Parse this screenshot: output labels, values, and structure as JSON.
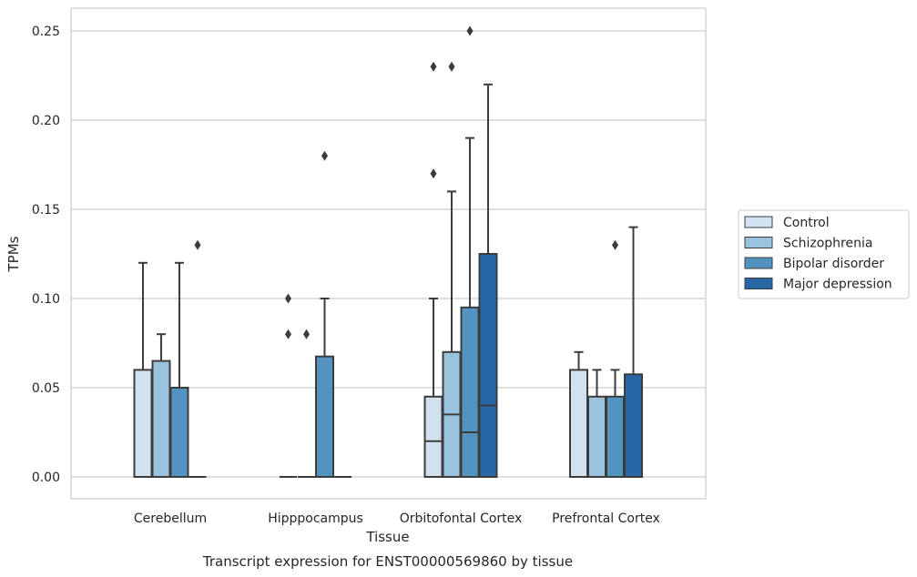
{
  "chart_data": {
    "type": "boxplot",
    "caption": "Transcript expression for ENST00000569860 by tissue",
    "xlabel": "Tissue",
    "ylabel": "TPMs",
    "ylim": [
      -0.012,
      0.263
    ],
    "yticks": [
      0.0,
      0.05,
      0.1,
      0.15,
      0.2,
      0.25
    ],
    "ytick_labels": [
      "0.00",
      "0.05",
      "0.10",
      "0.15",
      "0.20",
      "0.25"
    ],
    "grid": "horizontal",
    "legend_placement": "right, outside plot",
    "categories": [
      "Cerebellum",
      "Hipppocampus",
      "Orbitofontal Cortex",
      "Prefrontal Cortex"
    ],
    "series": [
      {
        "name": "Control",
        "color": "#d2e1f0",
        "boxes": [
          {
            "q1": 0.0,
            "median": 0.0,
            "q3": 0.06,
            "whisker_low": 0.0,
            "whisker_high": 0.12,
            "outliers": []
          },
          {
            "q1": 0.0,
            "median": 0.0,
            "q3": 0.0,
            "whisker_low": 0.0,
            "whisker_high": 0.0,
            "outliers": [
              0.08,
              0.1
            ]
          },
          {
            "q1": 0.0,
            "median": 0.02,
            "q3": 0.045,
            "whisker_low": 0.0,
            "whisker_high": 0.1,
            "outliers": [
              0.17,
              0.23
            ]
          },
          {
            "q1": 0.0,
            "median": 0.0,
            "q3": 0.06,
            "whisker_low": 0.0,
            "whisker_high": 0.07,
            "outliers": []
          }
        ]
      },
      {
        "name": "Schizophrenia",
        "color": "#9bc3de",
        "boxes": [
          {
            "q1": 0.0,
            "median": 0.0,
            "q3": 0.065,
            "whisker_low": 0.0,
            "whisker_high": 0.08,
            "outliers": []
          },
          {
            "q1": 0.0,
            "median": 0.0,
            "q3": 0.0,
            "whisker_low": 0.0,
            "whisker_high": 0.0,
            "outliers": [
              0.08
            ]
          },
          {
            "q1": 0.0,
            "median": 0.035,
            "q3": 0.07,
            "whisker_low": 0.0,
            "whisker_high": 0.16,
            "outliers": [
              0.23
            ]
          },
          {
            "q1": 0.0,
            "median": 0.0,
            "q3": 0.045,
            "whisker_low": 0.0,
            "whisker_high": 0.06,
            "outliers": []
          }
        ]
      },
      {
        "name": "Bipolar disorder",
        "color": "#5293c2",
        "boxes": [
          {
            "q1": 0.0,
            "median": 0.0,
            "q3": 0.05,
            "whisker_low": 0.0,
            "whisker_high": 0.12,
            "outliers": []
          },
          {
            "q1": 0.0,
            "median": 0.0,
            "q3": 0.0675,
            "whisker_low": 0.0,
            "whisker_high": 0.1,
            "outliers": [
              0.18
            ]
          },
          {
            "q1": 0.0,
            "median": 0.025,
            "q3": 0.095,
            "whisker_low": 0.0,
            "whisker_high": 0.19,
            "outliers": [
              0.25
            ]
          },
          {
            "q1": 0.0,
            "median": 0.0,
            "q3": 0.045,
            "whisker_low": 0.0,
            "whisker_high": 0.06,
            "outliers": [
              0.13
            ]
          }
        ]
      },
      {
        "name": "Major depression",
        "color": "#2867a5",
        "boxes": [
          {
            "q1": 0.0,
            "median": 0.0,
            "q3": 0.0,
            "whisker_low": 0.0,
            "whisker_high": 0.0,
            "outliers": [
              0.13
            ]
          },
          {
            "q1": 0.0,
            "median": 0.0,
            "q3": 0.0,
            "whisker_low": 0.0,
            "whisker_high": 0.0,
            "outliers": []
          },
          {
            "q1": 0.0,
            "median": 0.04,
            "q3": 0.125,
            "whisker_low": 0.0,
            "whisker_high": 0.22,
            "outliers": []
          },
          {
            "q1": 0.0,
            "median": 0.0,
            "q3": 0.0575,
            "whisker_low": 0.0,
            "whisker_high": 0.14,
            "outliers": []
          }
        ]
      }
    ]
  }
}
